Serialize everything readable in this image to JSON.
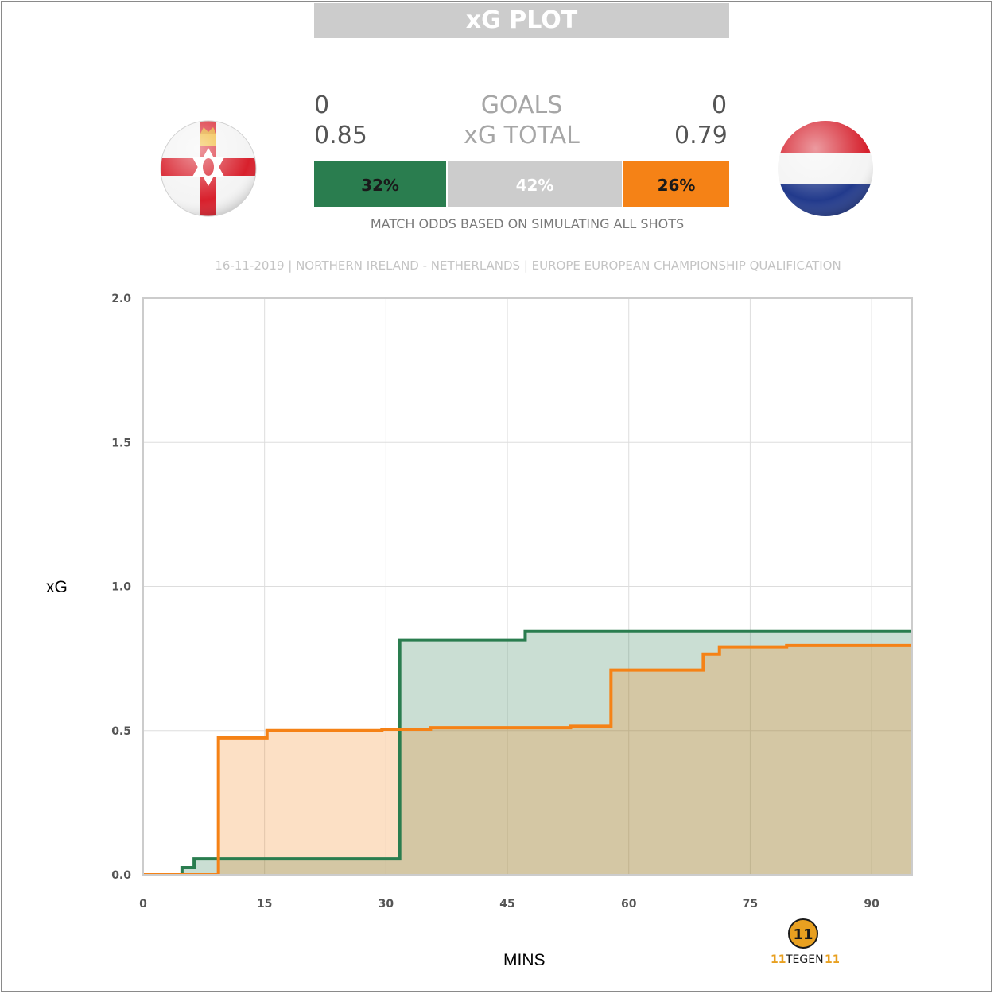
{
  "header": {
    "title": "xG PLOT"
  },
  "home": {
    "team": "Northern Ireland",
    "goals": "0",
    "xg_total": "0.85",
    "win_pct": "32%",
    "color": "#2a7d4f",
    "flag_icon": "northern-ireland-flag-icon"
  },
  "away": {
    "team": "Netherlands",
    "goals": "0",
    "xg_total": "0.79",
    "win_pct": "26%",
    "color": "#f58216",
    "flag_icon": "netherlands-flag-icon"
  },
  "center": {
    "goals_label": "GOALS",
    "xg_label": "xG TOTAL",
    "draw_pct": "42%"
  },
  "odds_note": "MATCH ODDS BASED ON SIMULATING ALL SHOTS",
  "match_info": "16-11-2019 | NORTHERN IRELAND - NETHERLANDS | EUROPE EUROPEAN CHAMPIONSHIP QUALIFICATION",
  "logo": {
    "text": "TEGEN",
    "icon": "11tegen11-logo-icon"
  },
  "chart_data": {
    "type": "area",
    "xlabel": "MINS",
    "ylabel": "xG",
    "xlim": [
      0,
      95
    ],
    "ylim": [
      0,
      2
    ],
    "xticks": [
      0,
      15,
      30,
      45,
      60,
      75,
      90
    ],
    "yticks": [
      0.0,
      0.5,
      1.0,
      1.5,
      2.0
    ],
    "ytick_labels": [
      "0.0",
      "0.5",
      "1.0",
      "1.5",
      "2.0"
    ],
    "grid": true,
    "series": [
      {
        "color": "#2a7d4f",
        "fill": "rgba(42,125,79,0.25)",
        "steps": [
          [
            0,
            0
          ],
          [
            4.8,
            0.025
          ],
          [
            6.3,
            0.055
          ],
          [
            31.7,
            0.815
          ],
          [
            47.2,
            0.845
          ],
          [
            95,
            0.845
          ]
        ]
      },
      {
        "color": "#f58216",
        "fill": "rgba(245,130,22,0.25)",
        "steps": [
          [
            0,
            0
          ],
          [
            9.3,
            0.475
          ],
          [
            15.3,
            0.5
          ],
          [
            29.5,
            0.505
          ],
          [
            35.5,
            0.51
          ],
          [
            52.8,
            0.515
          ],
          [
            57.8,
            0.71
          ],
          [
            69.2,
            0.765
          ],
          [
            71.2,
            0.79
          ],
          [
            79.5,
            0.795
          ],
          [
            95,
            0.795
          ]
        ]
      }
    ]
  }
}
